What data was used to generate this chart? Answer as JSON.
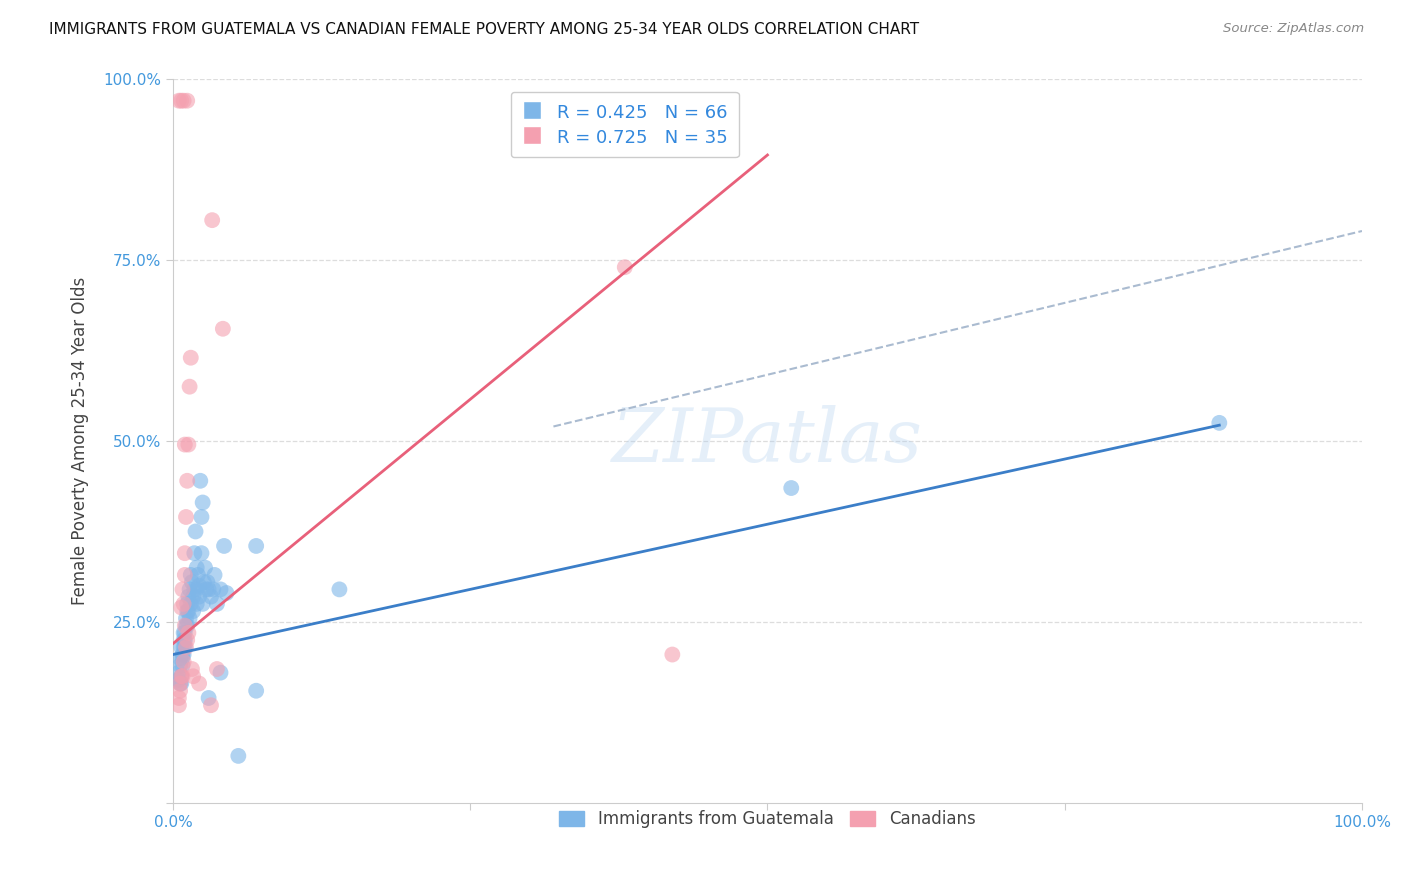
{
  "title": "IMMIGRANTS FROM GUATEMALA VS CANADIAN FEMALE POVERTY AMONG 25-34 YEAR OLDS CORRELATION CHART",
  "source": "Source: ZipAtlas.com",
  "ylabel": "Female Poverty Among 25-34 Year Olds",
  "xlim": [
    0,
    1
  ],
  "ylim": [
    0,
    1
  ],
  "xtick_positions": [
    0,
    0.25,
    0.5,
    0.75,
    1.0
  ],
  "ytick_positions": [
    0,
    0.25,
    0.5,
    0.75,
    1.0
  ],
  "xtick_labels": [
    "0.0%",
    "",
    "",
    "",
    "100.0%"
  ],
  "ytick_labels": [
    "",
    "25.0%",
    "50.0%",
    "75.0%",
    "100.0%"
  ],
  "blue_R": 0.425,
  "blue_N": 66,
  "pink_R": 0.725,
  "pink_N": 35,
  "blue_color": "#7EB6E8",
  "pink_color": "#F4A0B0",
  "blue_line_color": "#3B7EC8",
  "pink_line_color": "#E8607A",
  "dashed_line_color": "#AABBD0",
  "blue_label": "Immigrants from Guatemala",
  "pink_label": "Canadians",
  "blue_scatter": [
    [
      0.005,
      0.17
    ],
    [
      0.005,
      0.18
    ],
    [
      0.006,
      0.19
    ],
    [
      0.006,
      0.2
    ],
    [
      0.006,
      0.165
    ],
    [
      0.007,
      0.175
    ],
    [
      0.007,
      0.165
    ],
    [
      0.007,
      0.215
    ],
    [
      0.008,
      0.19
    ],
    [
      0.008,
      0.205
    ],
    [
      0.008,
      0.2
    ],
    [
      0.009,
      0.215
    ],
    [
      0.009,
      0.225
    ],
    [
      0.009,
      0.235
    ],
    [
      0.009,
      0.205
    ],
    [
      0.01,
      0.225
    ],
    [
      0.01,
      0.215
    ],
    [
      0.01,
      0.235
    ],
    [
      0.011,
      0.245
    ],
    [
      0.011,
      0.255
    ],
    [
      0.012,
      0.265
    ],
    [
      0.012,
      0.275
    ],
    [
      0.012,
      0.245
    ],
    [
      0.013,
      0.285
    ],
    [
      0.014,
      0.295
    ],
    [
      0.014,
      0.255
    ],
    [
      0.015,
      0.315
    ],
    [
      0.015,
      0.275
    ],
    [
      0.016,
      0.305
    ],
    [
      0.017,
      0.265
    ],
    [
      0.017,
      0.285
    ],
    [
      0.018,
      0.345
    ],
    [
      0.018,
      0.295
    ],
    [
      0.019,
      0.375
    ],
    [
      0.02,
      0.325
    ],
    [
      0.02,
      0.275
    ],
    [
      0.021,
      0.315
    ],
    [
      0.022,
      0.285
    ],
    [
      0.023,
      0.445
    ],
    [
      0.024,
      0.395
    ],
    [
      0.024,
      0.345
    ],
    [
      0.025,
      0.415
    ],
    [
      0.026,
      0.305
    ],
    [
      0.027,
      0.325
    ],
    [
      0.028,
      0.295
    ],
    [
      0.029,
      0.305
    ],
    [
      0.03,
      0.295
    ],
    [
      0.032,
      0.285
    ],
    [
      0.034,
      0.295
    ],
    [
      0.035,
      0.315
    ],
    [
      0.037,
      0.275
    ],
    [
      0.04,
      0.295
    ],
    [
      0.043,
      0.355
    ],
    [
      0.02,
      0.295
    ],
    [
      0.025,
      0.275
    ],
    [
      0.045,
      0.29
    ],
    [
      0.013,
      0.265
    ],
    [
      0.022,
      0.3
    ],
    [
      0.07,
      0.355
    ],
    [
      0.07,
      0.155
    ],
    [
      0.03,
      0.145
    ],
    [
      0.055,
      0.065
    ],
    [
      0.04,
      0.18
    ],
    [
      0.14,
      0.295
    ],
    [
      0.52,
      0.435
    ],
    [
      0.88,
      0.525
    ]
  ],
  "pink_scatter": [
    [
      0.005,
      0.135
    ],
    [
      0.005,
      0.145
    ],
    [
      0.006,
      0.155
    ],
    [
      0.006,
      0.165
    ],
    [
      0.007,
      0.27
    ],
    [
      0.007,
      0.175
    ],
    [
      0.008,
      0.295
    ],
    [
      0.008,
      0.175
    ],
    [
      0.009,
      0.275
    ],
    [
      0.009,
      0.195
    ],
    [
      0.01,
      0.315
    ],
    [
      0.01,
      0.345
    ],
    [
      0.01,
      0.245
    ],
    [
      0.011,
      0.395
    ],
    [
      0.011,
      0.215
    ],
    [
      0.012,
      0.445
    ],
    [
      0.012,
      0.225
    ],
    [
      0.013,
      0.495
    ],
    [
      0.013,
      0.235
    ],
    [
      0.014,
      0.575
    ],
    [
      0.015,
      0.615
    ],
    [
      0.016,
      0.185
    ],
    [
      0.017,
      0.175
    ],
    [
      0.022,
      0.165
    ],
    [
      0.032,
      0.135
    ],
    [
      0.037,
      0.185
    ],
    [
      0.042,
      0.655
    ],
    [
      0.01,
      0.495
    ],
    [
      0.005,
      0.97
    ],
    [
      0.007,
      0.97
    ],
    [
      0.009,
      0.97
    ],
    [
      0.012,
      0.97
    ],
    [
      0.38,
      0.74
    ],
    [
      0.42,
      0.205
    ],
    [
      0.033,
      0.805
    ]
  ],
  "blue_line_x": [
    0.0,
    0.88
  ],
  "blue_line_y_intercept": 0.205,
  "blue_line_slope": 0.36,
  "pink_line_x": [
    0.0,
    0.5
  ],
  "pink_line_y_intercept": 0.22,
  "pink_line_slope": 1.35,
  "dashed_line_x": [
    0.32,
    1.0
  ],
  "dashed_line_y_start": 0.52,
  "dashed_line_y_end": 0.79
}
